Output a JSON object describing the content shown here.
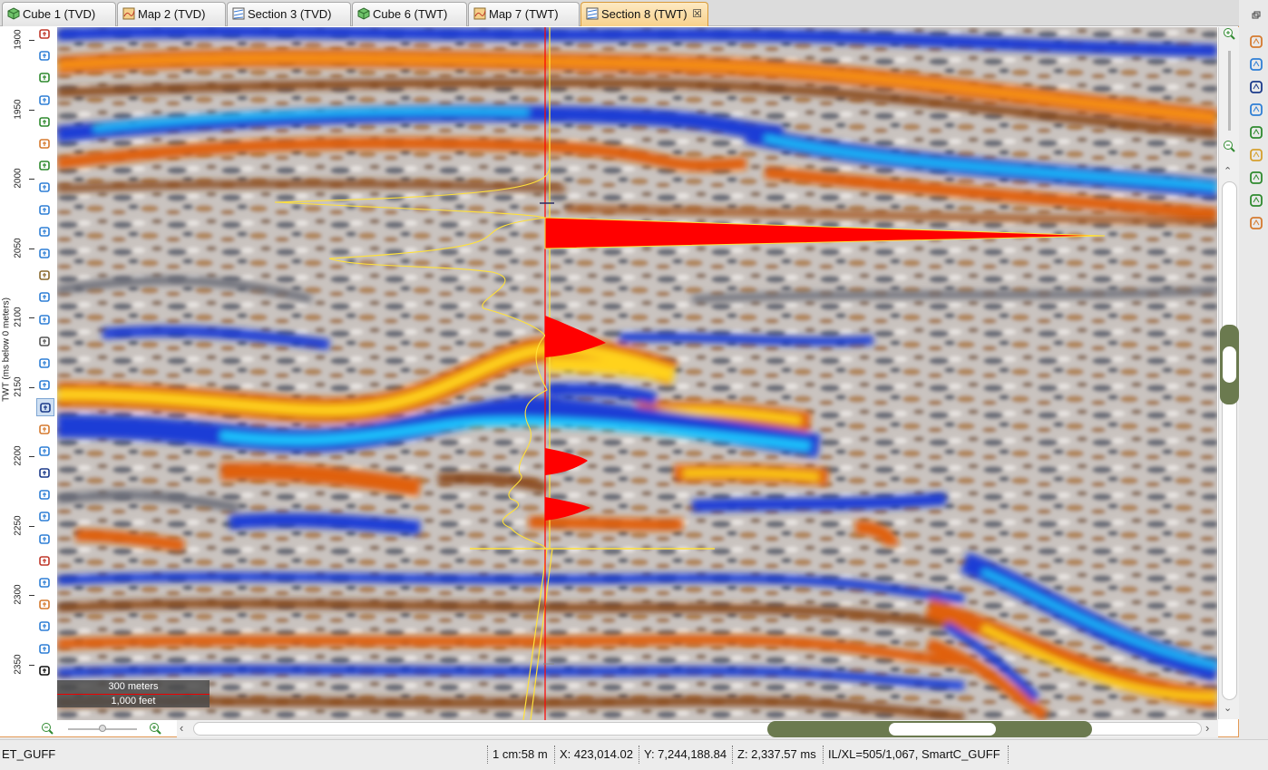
{
  "tabs": [
    {
      "label": "Cube 1 (TVD)",
      "icon": "cube-icon"
    },
    {
      "label": "Map 2 (TVD)",
      "icon": "map-icon"
    },
    {
      "label": "Section 3 (TVD)",
      "icon": "section-icon"
    },
    {
      "label": "Cube 6 (TWT)",
      "icon": "cube-icon"
    },
    {
      "label": "Map 7 (TWT)",
      "icon": "map-icon"
    },
    {
      "label": "Section 8 (TWT)",
      "icon": "section-icon",
      "active": true,
      "close": "☒"
    }
  ],
  "axis": {
    "title": "TWT (ms below 0 meters)",
    "ticks": [
      "1900",
      "1950",
      "2000",
      "2050",
      "2100",
      "2150",
      "2200",
      "2250",
      "2300",
      "2350"
    ]
  },
  "scalebar": {
    "meters": "300 meters",
    "feet": "1,000 feet"
  },
  "status": {
    "left": "ET_GUFF",
    "scale": "1 cm:58 m",
    "x": "X: 423,014.02",
    "y": "Y: 7,244,188.84",
    "z": "Z: 2,337.57 ms",
    "ilxl": "IL/XL=505/1,067, SmartC_GUFF"
  },
  "colors": {
    "orange": "#e0600a",
    "yellow": "#ffd21e",
    "blue": "#1a3ed6",
    "cyan": "#1fc8ff",
    "brown": "#8a4a1c",
    "wiggle": "#ffe13a",
    "fill": "#ff0000",
    "accent": "#e39a55"
  }
}
